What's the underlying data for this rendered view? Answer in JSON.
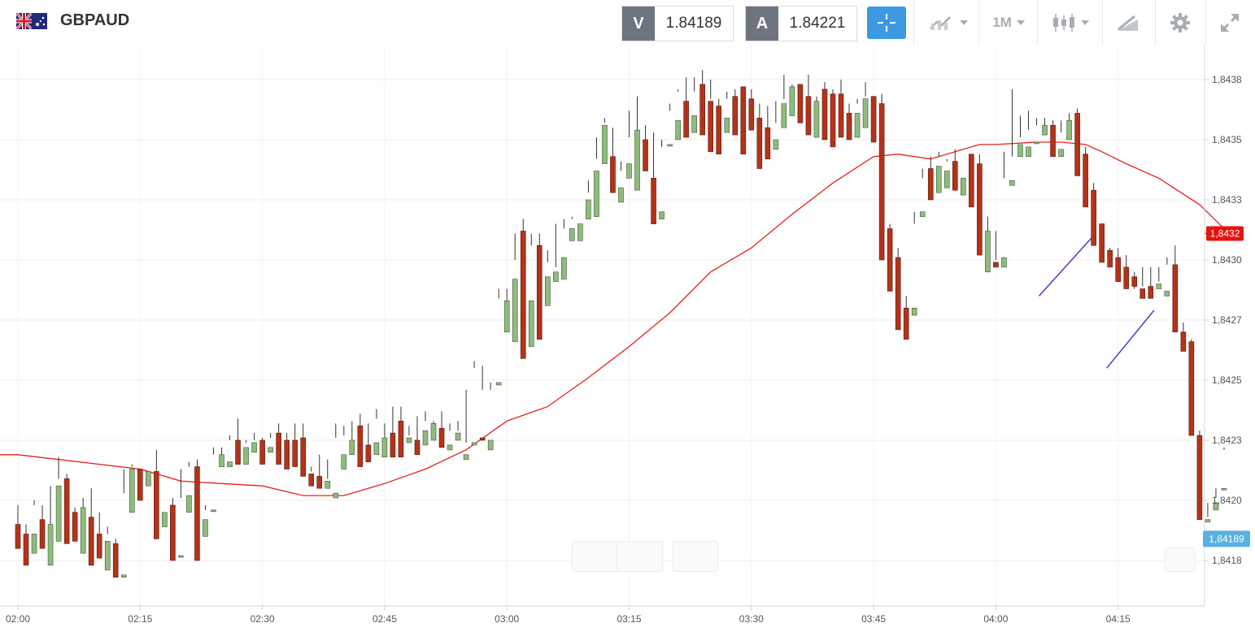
{
  "header": {
    "symbol": "GBPAUD",
    "flag_icon": "gb-au-flag-icon",
    "sell_tag": "V",
    "sell_price": "1.84189",
    "buy_tag": "A",
    "buy_price": "1.84221",
    "timeframe": "1M",
    "tools": [
      "crosshair-icon",
      "chart-type-icon",
      "timeframe-dropdown",
      "candles-icon",
      "drawing-icon",
      "gear-icon",
      "fullscreen-icon"
    ]
  },
  "colors": {
    "bull": "#8fbc7e",
    "bear": "#b5321a",
    "ma_line": "#e8211b",
    "trendline": "#3b3fcf",
    "current_price_tag": "#5ab0de",
    "ma_price_tag": "#e8120f",
    "accent": "#3b9ae1"
  },
  "chart_data": {
    "type": "candlestick",
    "symbol": "GBPAUD",
    "interval": "1M",
    "y_ticks": [
      "1,8438",
      "1,8435",
      "1,8433",
      "1,8430",
      "1,8427",
      "1,8425",
      "1,8423",
      "1,8420",
      "1,8418"
    ],
    "ylim": [
      1.84171,
      1.84394
    ],
    "x_ticks": [
      "02:00",
      "02:15",
      "02:30",
      "02:45",
      "03:00",
      "03:15",
      "03:30",
      "03:45",
      "04:00",
      "04:15"
    ],
    "x_tick_minutes": [
      0,
      15,
      30,
      45,
      60,
      75,
      90,
      105,
      120,
      135
    ],
    "current_price_label": "1,84189",
    "current_price": 1.84189,
    "ma_price_label": "1,8432",
    "ma_price": 1.84316,
    "candles": [
      [
        1.84195,
        1.84203,
        1.84191,
        1.84185,
        0
      ],
      [
        1.84191,
        1.84195,
        1.84188,
        1.84178,
        0
      ],
      [
        1.84191,
        1.84203,
        1.84205,
        1.84183,
        1
      ],
      [
        1.84197,
        1.84203,
        1.8419,
        1.84185,
        0
      ],
      [
        1.84195,
        1.84211,
        1.84193,
        1.84178,
        1
      ],
      [
        1.84211,
        1.84223,
        1.84214,
        1.84188,
        1
      ],
      [
        1.84214,
        1.84216,
        1.84194,
        1.84187,
        0
      ],
      [
        1.842,
        1.84202,
        1.84197,
        1.84188,
        0
      ],
      [
        1.84202,
        1.84199,
        1.84206,
        1.84183,
        1
      ],
      [
        1.84198,
        1.8421,
        1.84191,
        1.84178,
        0
      ],
      [
        1.84191,
        1.842,
        1.84188,
        1.84181,
        0
      ],
      [
        1.84188,
        1.84194,
        1.84191,
        1.84176,
        1
      ],
      [
        1.84187,
        1.84189,
        1.84174,
        1.84173,
        0
      ],
      [
        1.84174,
        1.84208,
        1.84218,
        1.84173,
        1
      ],
      [
        1.84218,
        1.8422,
        1.84219,
        1.842,
        1
      ],
      [
        1.84218,
        1.84216,
        1.84217,
        1.84205,
        0
      ],
      [
        1.84217,
        1.84219,
        1.84219,
        1.84211,
        1
      ],
      [
        1.84217,
        1.84226,
        1.842,
        1.84189,
        0
      ],
      [
        1.842,
        1.84203,
        1.84203,
        1.84194,
        1
      ],
      [
        1.84203,
        1.84206,
        1.84182,
        1.8418,
        0
      ],
      [
        1.84182,
        1.84218,
        1.84206,
        1.84182,
        1
      ],
      [
        1.84207,
        1.84221,
        1.84219,
        1.842,
        1
      ],
      [
        1.84219,
        1.84222,
        1.84197,
        1.8418,
        0
      ],
      [
        1.84197,
        1.84203,
        1.84201,
        1.8419,
        1
      ],
      [
        1.84201,
        1.84227,
        1.84224,
        1.84201,
        1
      ],
      [
        1.84224,
        1.84227,
        1.84221,
        1.84219,
        1
      ],
      [
        1.84221,
        1.84232,
        1.8423,
        1.84219,
        1
      ],
      [
        1.8423,
        1.84239,
        1.84227,
        1.8422,
        0
      ],
      [
        1.84227,
        1.8423,
        1.84229,
        1.8422,
        1
      ],
      [
        1.84229,
        1.84233,
        1.8423,
        1.84225,
        1
      ],
      [
        1.8423,
        1.84231,
        1.84227,
        1.8422,
        0
      ],
      [
        1.84227,
        1.84231,
        1.84233,
        1.84225,
        1
      ],
      [
        1.84233,
        1.84237,
        1.8423,
        1.8422,
        0
      ],
      [
        1.8423,
        1.84233,
        1.84228,
        1.84218,
        0
      ],
      [
        1.8423,
        1.84237,
        1.84226,
        1.84219,
        0
      ],
      [
        1.84231,
        1.84237,
        1.8423,
        1.84215,
        0
      ],
      [
        1.84216,
        1.84219,
        1.84217,
        1.84211,
        0
      ],
      [
        1.84215,
        1.84224,
        1.8421,
        1.8421,
        0
      ],
      [
        1.84213,
        1.84222,
        1.84214,
        1.8421,
        1
      ],
      [
        1.84208,
        1.84231,
        1.84237,
        1.84206,
        1
      ],
      [
        1.84224,
        1.84236,
        1.84232,
        1.84218,
        1
      ],
      [
        1.8423,
        1.84238,
        1.8423,
        1.84224,
        1
      ],
      [
        1.84236,
        1.84241,
        1.84226,
        1.84219,
        0
      ],
      [
        1.84228,
        1.84237,
        1.84226,
        1.84221,
        0
      ],
      [
        1.84229,
        1.84243,
        1.84239,
        1.84224,
        1
      ],
      [
        1.84231,
        1.84237,
        1.84225,
        1.84223,
        1
      ],
      [
        1.84233,
        1.84244,
        1.84228,
        1.84223,
        0
      ],
      [
        1.84238,
        1.84244,
        1.84233,
        1.84223,
        0
      ],
      [
        1.84231,
        1.84236,
        1.84232,
        1.84229,
        1
      ],
      [
        1.8423,
        1.8424,
        1.8423,
        1.84224,
        0
      ],
      [
        1.84234,
        1.84242,
        1.84238,
        1.84228,
        1
      ],
      [
        1.84237,
        1.84236,
        1.84238,
        1.8423,
        1
      ],
      [
        1.84235,
        1.84242,
        1.84234,
        1.84227,
        0
      ],
      [
        1.84226,
        1.84237,
        1.84234,
        1.84228,
        1
      ],
      [
        1.84233,
        1.84238,
        1.84234,
        1.8423,
        1
      ],
      [
        1.84224,
        1.84251,
        1.84229,
        1.84222,
        1
      ],
      [
        1.84229,
        1.84263,
        1.8426,
        1.84228,
        1
      ],
      [
        1.84231,
        1.84261,
        1.84251,
        1.8423,
        0
      ],
      [
        1.84226,
        1.84251,
        1.84254,
        1.8423,
        1
      ],
      [
        1.84254,
        1.84293,
        1.84289,
        1.84253,
        1
      ],
      [
        1.84288,
        1.84293,
        1.84276,
        1.84275,
        1
      ],
      [
        1.84297,
        1.84305,
        1.84316,
        1.84271,
        1
      ],
      [
        1.84317,
        1.84322,
        1.84291,
        1.84264,
        0
      ],
      [
        1.84288,
        1.84311,
        1.84316,
        1.84269,
        1
      ],
      [
        1.84311,
        1.84316,
        1.84298,
        1.84272,
        0
      ],
      [
        1.84298,
        1.84309,
        1.84304,
        1.84286,
        1
      ],
      [
        1.843,
        1.8432,
        1.84302,
        1.84296,
        1
      ],
      [
        1.84306,
        1.84318,
        1.84322,
        1.84297,
        1
      ],
      [
        1.84318,
        1.84323,
        1.84322,
        1.84313,
        1
      ],
      [
        1.8432,
        1.84331,
        1.84331,
        1.84313,
        1
      ],
      [
        1.8433,
        1.84333,
        1.84338,
        1.84322,
        1
      ],
      [
        1.84342,
        1.84347,
        1.84356,
        1.84323,
        1
      ],
      [
        1.84361,
        1.84362,
        1.84364,
        1.84345,
        1
      ],
      [
        1.84348,
        1.8436,
        1.84339,
        1.84333,
        0
      ],
      [
        1.84335,
        1.84346,
        1.84342,
        1.84329,
        1
      ],
      [
        1.84345,
        1.84367,
        1.84356,
        1.84339,
        1
      ],
      [
        1.84359,
        1.84373,
        1.84355,
        1.84334,
        1
      ],
      [
        1.84355,
        1.84361,
        1.84351,
        1.84342,
        0
      ],
      [
        1.84339,
        1.84358,
        1.84325,
        1.8432,
        0
      ],
      [
        1.84325,
        1.84355,
        1.84352,
        1.84322,
        1
      ],
      [
        1.84353,
        1.8437,
        1.84367,
        1.84353,
        1
      ],
      [
        1.84363,
        1.84376,
        1.84375,
        1.84355,
        1
      ],
      [
        1.84371,
        1.84381,
        1.84365,
        1.84356,
        0
      ],
      [
        1.84365,
        1.84381,
        1.84375,
        1.84358,
        1
      ],
      [
        1.84378,
        1.84384,
        1.84372,
        1.84357,
        0
      ],
      [
        1.84371,
        1.8438,
        1.84372,
        1.8435,
        0
      ],
      [
        1.84369,
        1.84372,
        1.84364,
        1.84349,
        0
      ],
      [
        1.84364,
        1.84375,
        1.84372,
        1.84358,
        1
      ],
      [
        1.84373,
        1.84376,
        1.84365,
        1.84357,
        0
      ],
      [
        1.84377,
        1.84377,
        1.84371,
        1.84349,
        0
      ],
      [
        1.84372,
        1.84376,
        1.84364,
        1.84359,
        0
      ],
      [
        1.84364,
        1.8437,
        1.84353,
        1.84343,
        0
      ],
      [
        1.8436,
        1.84369,
        1.84353,
        1.84347,
        0
      ],
      [
        1.84355,
        1.84371,
        1.84362,
        1.84351,
        1
      ],
      [
        1.8437,
        1.84382,
        1.84372,
        1.8436,
        1
      ],
      [
        1.84377,
        1.84376,
        1.84378,
        1.84365,
        1
      ],
      [
        1.84378,
        1.84378,
        1.84375,
        1.84362,
        0
      ],
      [
        1.84373,
        1.84382,
        1.84372,
        1.84357,
        0
      ],
      [
        1.84371,
        1.84373,
        1.84369,
        1.84356,
        1
      ],
      [
        1.84376,
        1.84379,
        1.84367,
        1.84355,
        0
      ],
      [
        1.84374,
        1.84376,
        1.84369,
        1.84352,
        0
      ],
      [
        1.84374,
        1.8438,
        1.84364,
        1.84356,
        0
      ],
      [
        1.84366,
        1.8437,
        1.84364,
        1.84355,
        0
      ],
      [
        1.84366,
        1.8437,
        1.84372,
        1.84356,
        1
      ],
      [
        1.84372,
        1.84379,
        1.84373,
        1.8436,
        1
      ],
      [
        1.84373,
        1.84373,
        1.84363,
        1.84354,
        0
      ],
      [
        1.8437,
        1.84374,
        1.84318,
        1.84305,
        0
      ],
      [
        1.84318,
        1.8432,
        1.84306,
        1.84292,
        0
      ],
      [
        1.84306,
        1.8431,
        1.84285,
        1.84276,
        0
      ],
      [
        1.84285,
        1.8429,
        1.8428,
        1.84272,
        0
      ],
      [
        1.84285,
        1.8432,
        1.84325,
        1.84282,
        1
      ],
      [
        1.84325,
        1.84339,
        1.84343,
        1.84323,
        1
      ],
      [
        1.84343,
        1.84348,
        1.84342,
        1.8433,
        0
      ],
      [
        1.84344,
        1.8435,
        1.84348,
        1.84333,
        1
      ],
      [
        1.84342,
        1.84347,
        1.84346,
        1.84335,
        1
      ],
      [
        1.84346,
        1.84351,
        1.84339,
        1.84334,
        0
      ],
      [
        1.84339,
        1.84349,
        1.84349,
        1.84332,
        1
      ],
      [
        1.84349,
        1.84349,
        1.84341,
        1.84327,
        0
      ],
      [
        1.84345,
        1.84349,
        1.84317,
        1.84307,
        0
      ],
      [
        1.84317,
        1.84323,
        1.84306,
        1.843,
        1
      ],
      [
        1.84304,
        1.84305,
        1.84317,
        1.84302,
        0
      ],
      [
        1.84306,
        1.8435,
        1.84339,
        1.84302,
        1
      ],
      [
        1.84336,
        1.84376,
        1.84348,
        1.84338,
        1
      ],
      [
        1.84353,
        1.84365,
        1.84356,
        1.84348,
        1
      ],
      [
        1.84352,
        1.84367,
        1.84359,
        1.84348,
        1
      ],
      [
        1.84354,
        1.84364,
        1.84361,
        1.84354,
        1
      ],
      [
        1.84361,
        1.84364,
        1.84359,
        1.84357,
        1
      ],
      [
        1.84361,
        1.84363,
        1.84349,
        1.84348,
        0
      ],
      [
        1.84351,
        1.84358,
        1.84363,
        1.84348,
        1
      ],
      [
        1.84363,
        1.84363,
        1.84366,
        1.84355,
        1
      ],
      [
        1.84366,
        1.84368,
        1.84349,
        1.8434,
        0
      ],
      [
        1.84349,
        1.84352,
        1.84336,
        1.84327,
        0
      ],
      [
        1.84334,
        1.84337,
        1.84321,
        1.84311,
        0
      ],
      [
        1.8432,
        1.8432,
        1.84309,
        1.84304,
        0
      ],
      [
        1.84309,
        1.8431,
        1.84306,
        1.84302,
        0
      ],
      [
        1.84306,
        1.8431,
        1.84302,
        1.84296,
        0
      ],
      [
        1.84302,
        1.84307,
        1.84298,
        1.84293,
        0
      ],
      [
        1.84298,
        1.843,
        1.84293,
        1.84294,
        0
      ],
      [
        1.84293,
        1.84302,
        1.84294,
        1.84289,
        0
      ],
      [
        1.84294,
        1.84302,
        1.84291,
        1.84289,
        0
      ],
      [
        1.84295,
        1.84302,
        1.84296,
        1.84293,
        1
      ],
      [
        1.84292,
        1.84306,
        1.84303,
        1.8429,
        1
      ],
      [
        1.84303,
        1.84311,
        1.84277,
        1.84275,
        0
      ],
      [
        1.84275,
        1.84279,
        1.84268,
        1.84267,
        0
      ],
      [
        1.84271,
        1.84272,
        1.84235,
        1.84232,
        0
      ],
      [
        1.84232,
        1.84234,
        1.84197,
        1.84197,
        0
      ],
      [
        1.84197,
        1.84204,
        1.84198,
        1.84196,
        1
      ],
      [
        1.84204,
        1.84206,
        1.8421,
        1.84201,
        1
      ],
      [
        1.8421,
        1.84227,
        1.84226,
        1.8421,
        1
      ]
    ],
    "candle_format": "[open, high, low, close, bull(1)/bear(0)] — values read approx from axis",
    "moving_average": [
      [
        0,
        1.84224
      ],
      [
        5,
        1.84222
      ],
      [
        10,
        1.8422
      ],
      [
        15,
        1.84218
      ],
      [
        20,
        1.84213
      ],
      [
        25,
        1.84212
      ],
      [
        30,
        1.84211
      ],
      [
        35,
        1.84207
      ],
      [
        40,
        1.84207
      ],
      [
        45,
        1.84212
      ],
      [
        50,
        1.84218
      ],
      [
        55,
        1.84226
      ],
      [
        60,
        1.84238
      ],
      [
        65,
        1.84244
      ],
      [
        70,
        1.84256
      ],
      [
        75,
        1.84269
      ],
      [
        80,
        1.84283
      ],
      [
        85,
        1.843
      ],
      [
        90,
        1.8431
      ],
      [
        95,
        1.84324
      ],
      [
        100,
        1.84337
      ],
      [
        105,
        1.84348
      ],
      [
        108,
        1.84349
      ],
      [
        112,
        1.84347
      ],
      [
        115,
        1.8435
      ],
      [
        118,
        1.84353
      ],
      [
        120,
        1.84353
      ],
      [
        125,
        1.84354
      ],
      [
        128,
        1.84354
      ],
      [
        131,
        1.84353
      ],
      [
        133,
        1.8435
      ],
      [
        136,
        1.84345
      ],
      [
        140,
        1.84339
      ],
      [
        145,
        1.84328
      ],
      [
        148,
        1.84318
      ],
      [
        149,
        1.84316
      ]
    ],
    "trendlines": [
      [
        [
          125.3,
          1.8429
        ],
        [
          131.7,
          1.84314
        ]
      ],
      [
        [
          133.6,
          1.8426
        ],
        [
          139.4,
          1.84284
        ]
      ]
    ]
  }
}
